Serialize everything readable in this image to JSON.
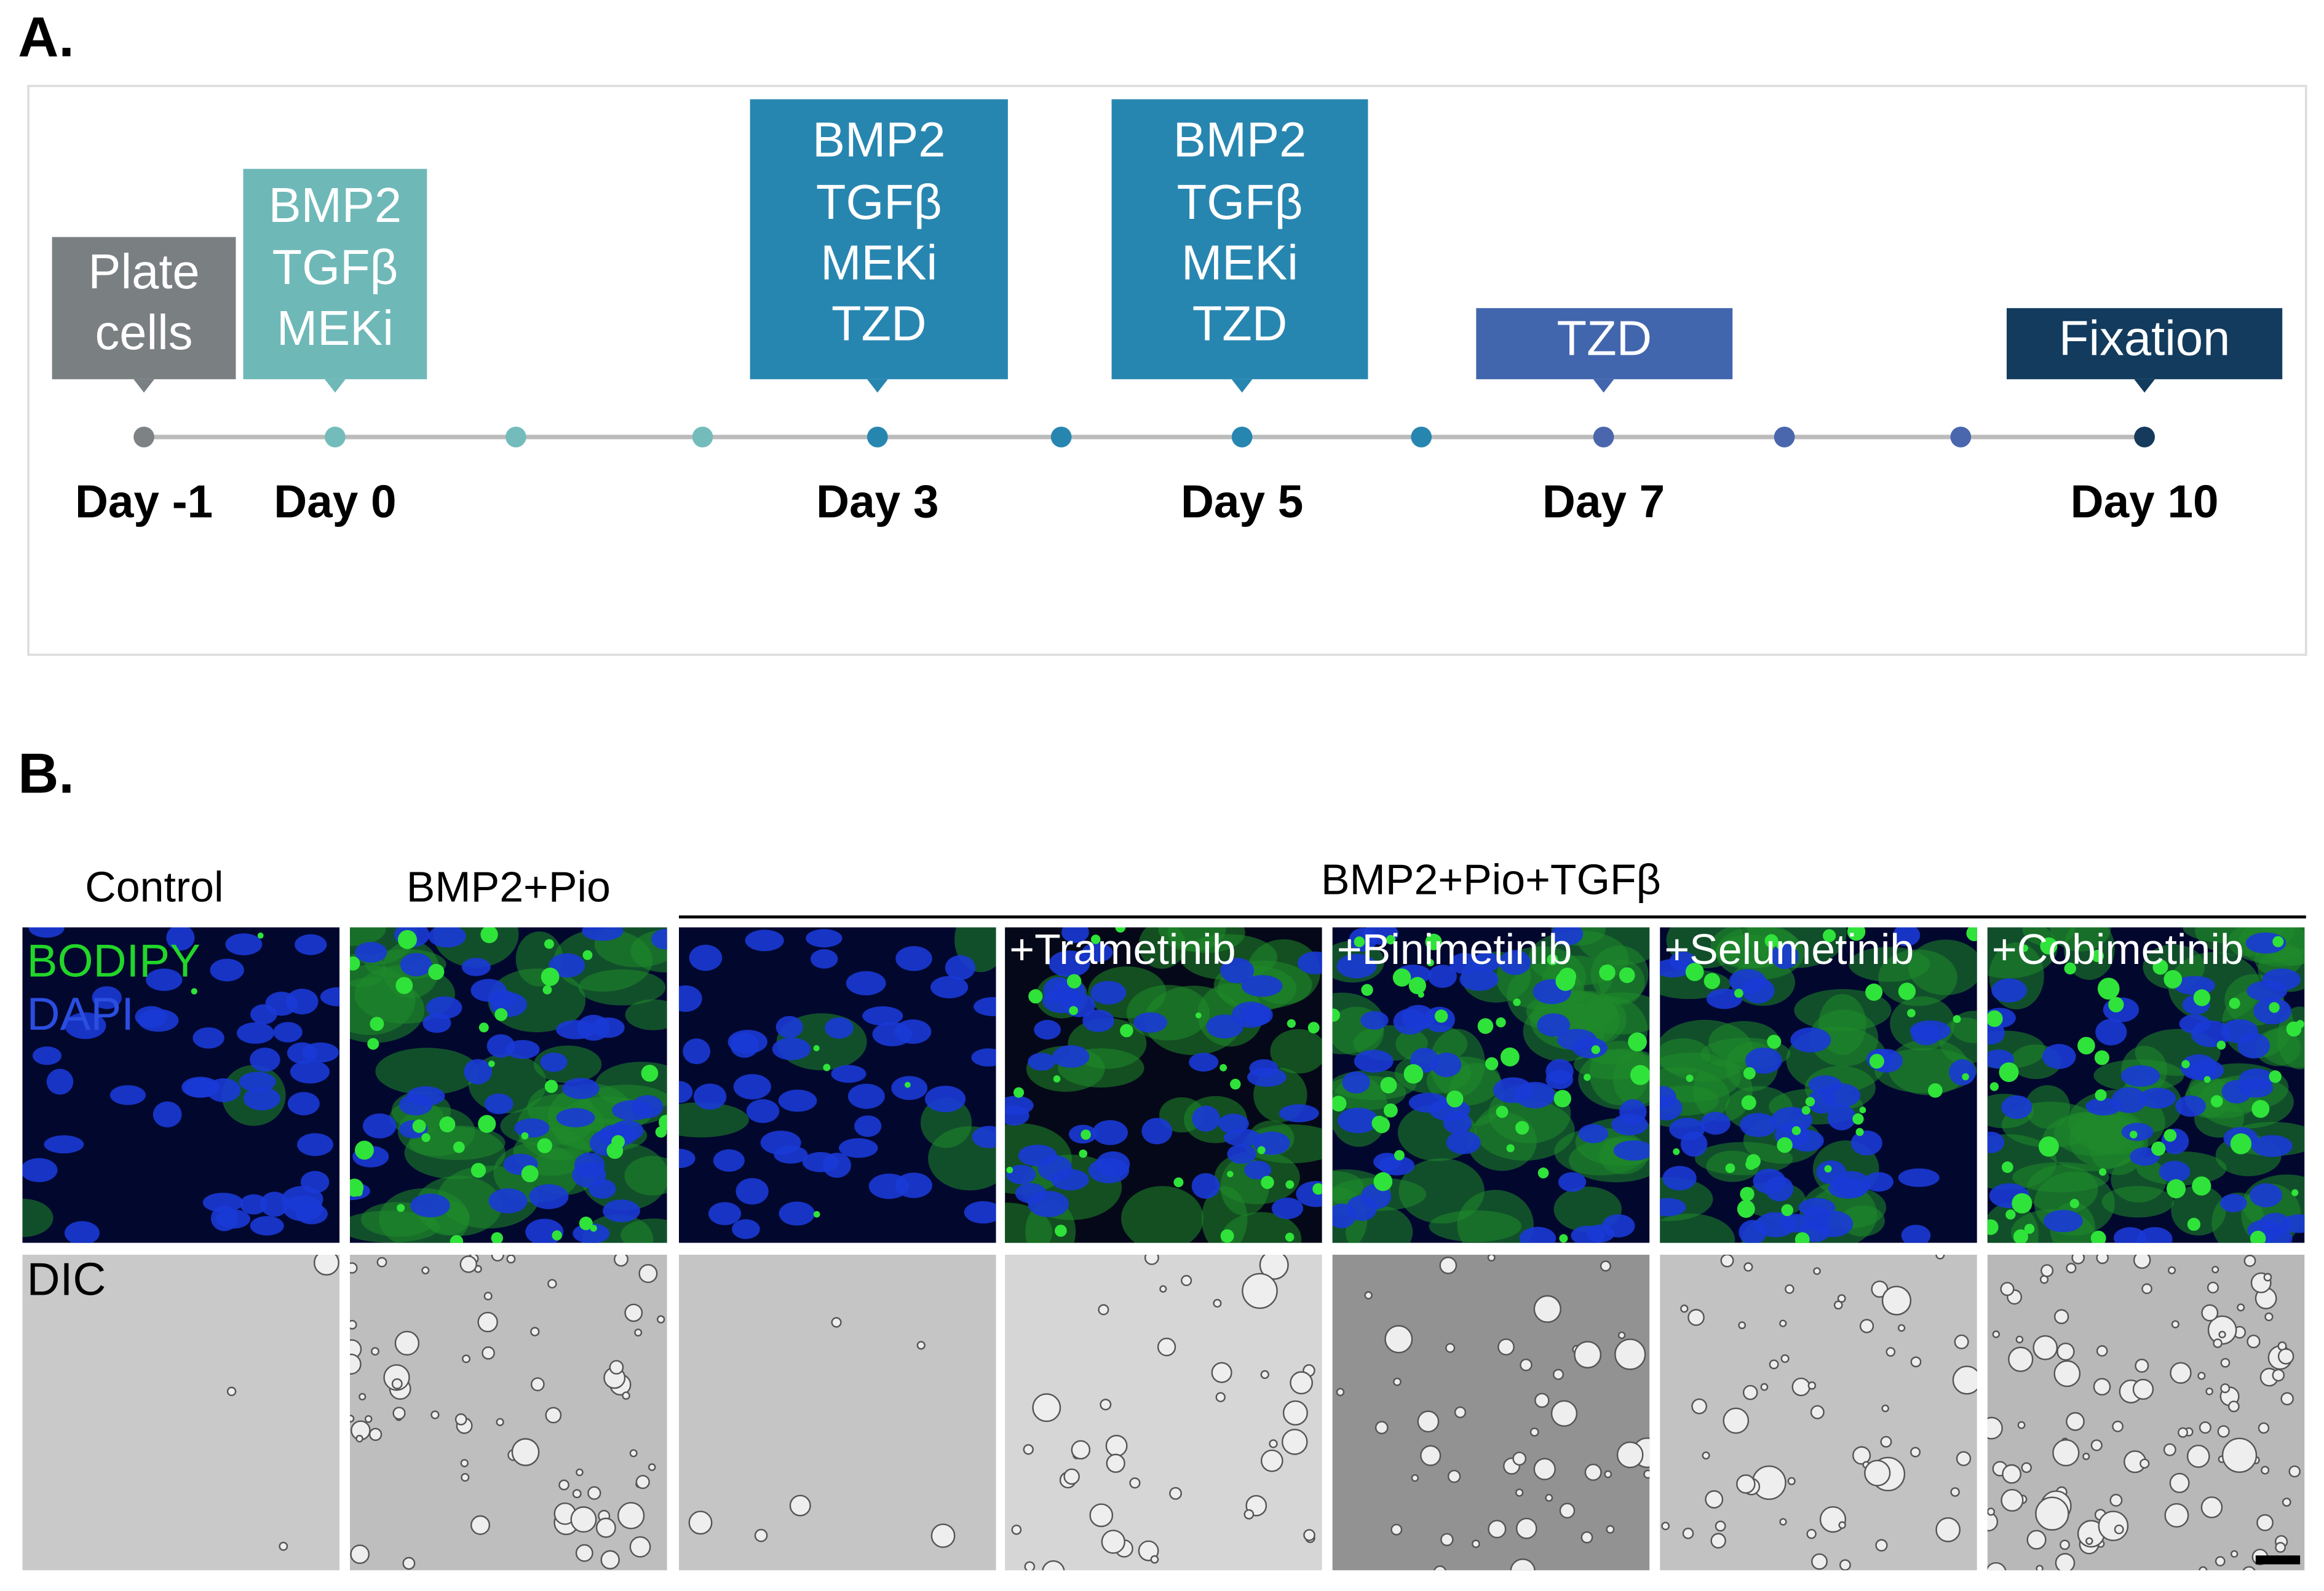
{
  "panel_a": {
    "label": "A.",
    "boxes": [
      {
        "lines": [
          "Plate",
          "cells"
        ]
      },
      {
        "lines": [
          "BMP2",
          "TGFβ",
          "MEKi"
        ]
      },
      {
        "lines": [
          "BMP2",
          "TGFβ",
          "MEKi",
          "TZD"
        ]
      },
      {
        "lines": [
          "BMP2",
          "TGFβ",
          "MEKi",
          "TZD"
        ]
      },
      {
        "lines": [
          "TZD"
        ]
      },
      {
        "lines": [
          "Fixation"
        ]
      }
    ],
    "days": [
      "Day -1",
      "Day 0",
      "Day 3",
      "Day 5",
      "Day 7",
      "Day 10"
    ]
  },
  "panel_b": {
    "label": "B.",
    "headers": [
      "Control",
      "BMP2+Pio",
      "BMP2+Pio+TGFβ"
    ],
    "overlays": [
      "+Trametinib",
      "+Binimetinib",
      "+Selumetinib",
      "+Cobimetinib"
    ],
    "channels": [
      "BODIPY",
      "DAPI",
      "DIC"
    ]
  }
}
